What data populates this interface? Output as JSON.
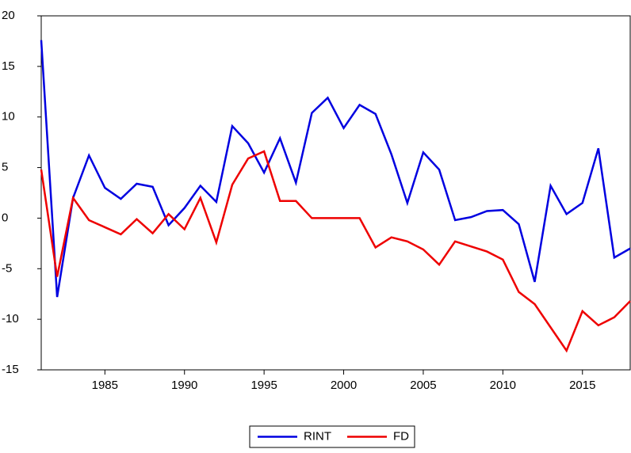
{
  "chart_data": {
    "type": "line",
    "x": [
      1981,
      1982,
      1983,
      1984,
      1985,
      1986,
      1987,
      1988,
      1989,
      1990,
      1991,
      1992,
      1993,
      1994,
      1995,
      1996,
      1997,
      1998,
      1999,
      2000,
      2001,
      2002,
      2003,
      2004,
      2005,
      2006,
      2007,
      2008,
      2009,
      2010,
      2011,
      2012,
      2013,
      2014,
      2015,
      2016,
      2017,
      2018
    ],
    "series": [
      {
        "name": "RINT",
        "color": "#0000e0",
        "values": [
          17.6,
          -7.8,
          2.0,
          6.2,
          3.0,
          1.9,
          3.4,
          3.1,
          -0.7,
          1.0,
          3.2,
          1.6,
          9.1,
          7.4,
          4.5,
          7.9,
          3.5,
          10.4,
          11.9,
          8.9,
          11.2,
          10.3,
          6.3,
          1.5,
          6.5,
          4.8,
          -0.2,
          0.1,
          0.7,
          0.8,
          -0.6,
          -6.3,
          3.2,
          0.4,
          1.5,
          6.9,
          -3.9,
          -3.0
        ]
      },
      {
        "name": "FD",
        "color": "#ee0000",
        "values": [
          4.8,
          -5.8,
          2.0,
          -0.2,
          -0.9,
          -1.6,
          -0.1,
          -1.5,
          0.4,
          -1.1,
          2.0,
          -2.4,
          3.3,
          5.9,
          6.6,
          1.7,
          1.7,
          0.0,
          0.0,
          0.0,
          0.0,
          -2.9,
          -1.9,
          -2.3,
          -3.1,
          -4.6,
          -2.3,
          -2.8,
          -3.3,
          -4.1,
          -7.3,
          -8.5,
          -10.8,
          -13.1,
          -9.2,
          -10.6,
          -9.8,
          -8.2
        ]
      }
    ],
    "xlim": [
      1981,
      2018
    ],
    "xticks": [
      1985,
      1990,
      1995,
      2000,
      2005,
      2010,
      2015
    ],
    "ylim": [
      -15,
      20
    ],
    "yticks": [
      -15,
      -10,
      -5,
      0,
      5,
      10,
      15,
      20
    ],
    "grid": false,
    "legend": "bottom"
  }
}
